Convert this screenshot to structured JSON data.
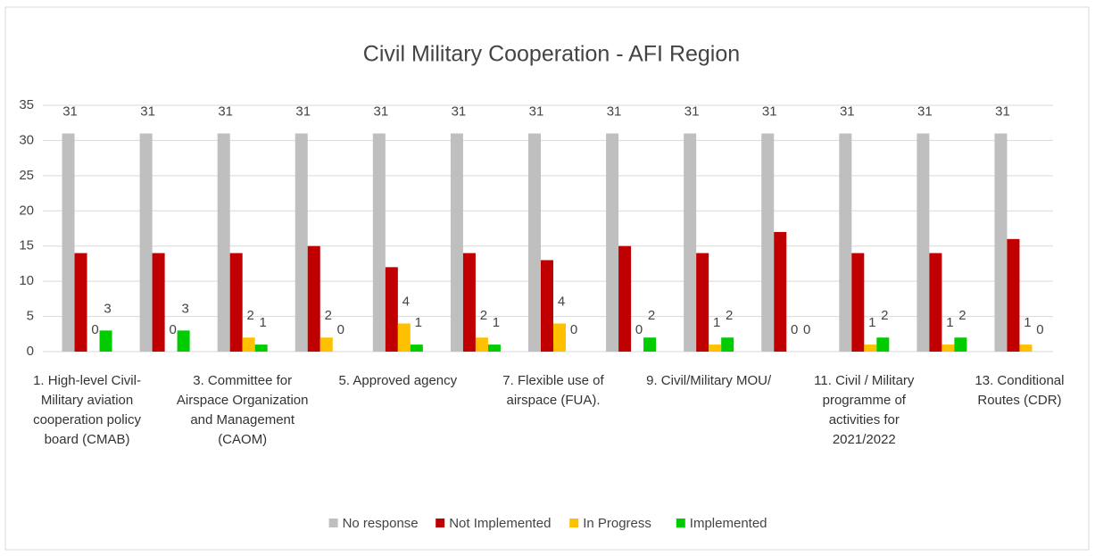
{
  "chart_data": {
    "type": "bar",
    "title": "Civil Military Cooperation - AFI Region",
    "categories": [
      "1. High-level Civil-Military aviation cooperation policy board (CMAB)",
      null,
      "3. Committee for Airspace Organization and Management (CAOM)",
      null,
      "5. Approved agency",
      null,
      "7. Flexible use of airspace (FUA).",
      null,
      "9. Civil/Military MOU/",
      null,
      "11. Civil / Military programme of activities for 2021/2022",
      null,
      "13. Conditional Routes (CDR)"
    ],
    "series": [
      {
        "name": "No response",
        "color": "#bfbfbf",
        "data_labels": true,
        "values": [
          31,
          31,
          31,
          31,
          31,
          31,
          31,
          31,
          31,
          31,
          31,
          31,
          31
        ]
      },
      {
        "name": "Not Implemented",
        "color": "#c00000",
        "data_labels": false,
        "values": [
          14,
          14,
          14,
          15,
          12,
          14,
          13,
          15,
          14,
          17,
          14,
          14,
          16
        ]
      },
      {
        "name": "In Progress",
        "color": "#ffc000",
        "data_labels": true,
        "values": [
          0,
          0,
          2,
          2,
          4,
          2,
          4,
          0,
          1,
          0,
          1,
          1,
          1
        ]
      },
      {
        "name": "Implemented",
        "color": "#00cc00",
        "data_labels": true,
        "values": [
          3,
          3,
          1,
          0,
          1,
          1,
          0,
          2,
          2,
          0,
          2,
          2,
          0
        ]
      }
    ],
    "ylim": [
      0,
      35
    ],
    "yticks": [
      0,
      5,
      10,
      15,
      20,
      25,
      30,
      35
    ],
    "grid": true,
    "legend": "bottom"
  }
}
